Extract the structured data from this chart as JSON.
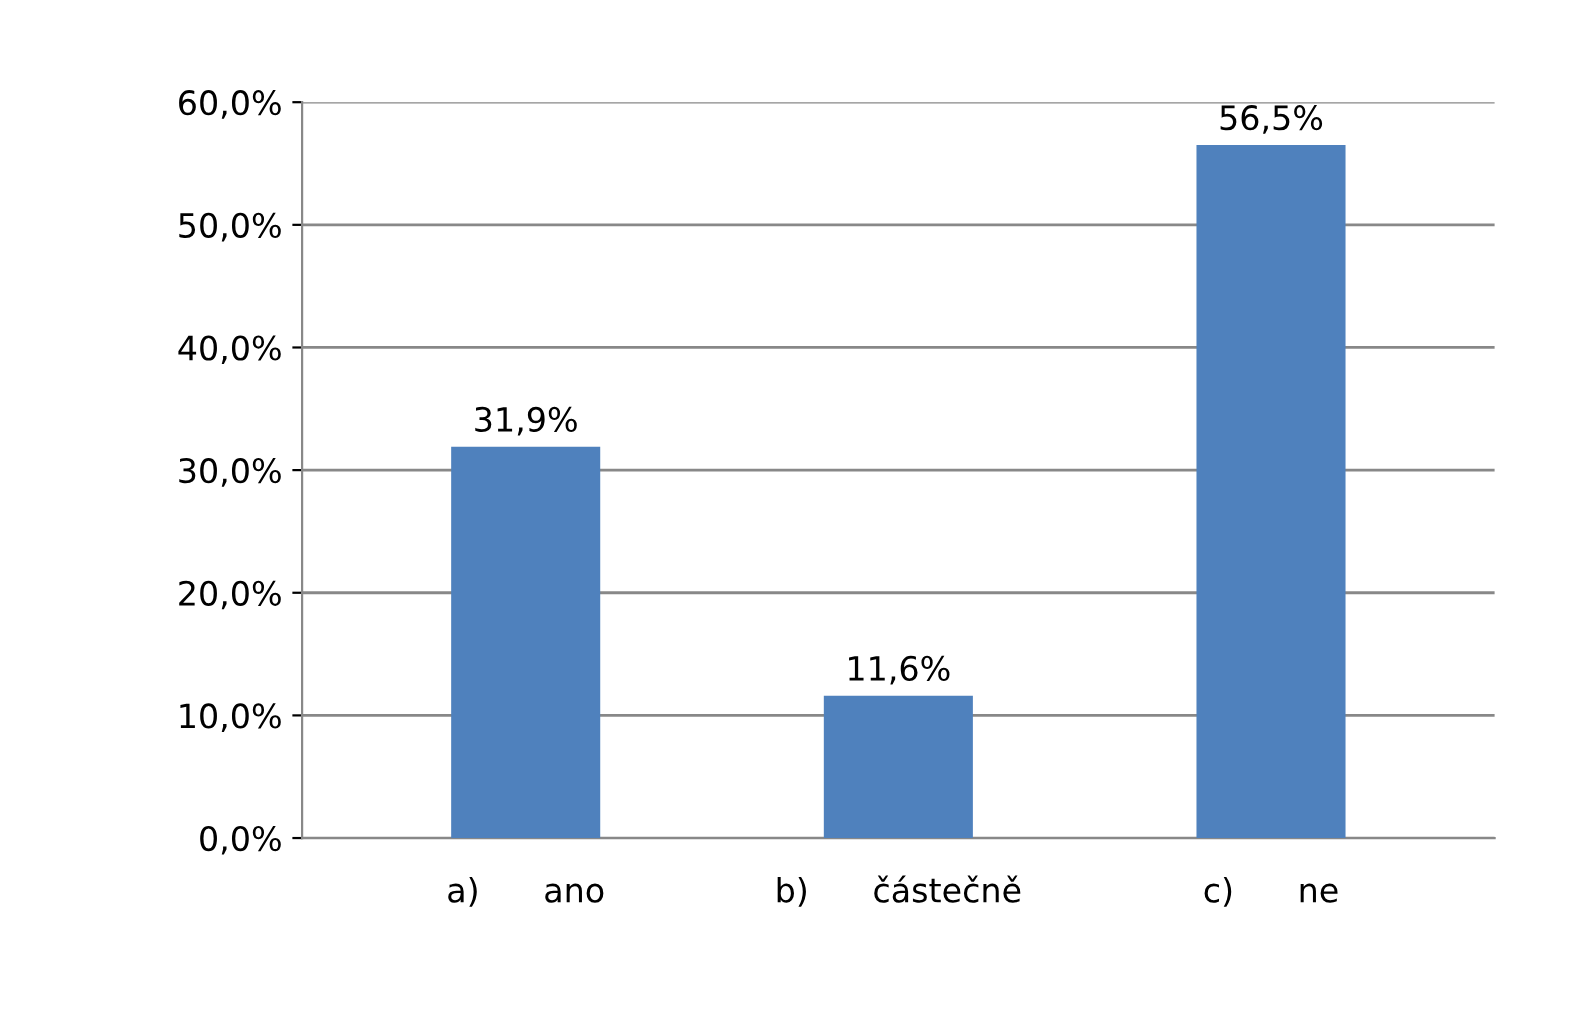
{
  "chart_data": {
    "type": "bar",
    "categories": [
      "a)      ano",
      "b)      částečně",
      "c)      ne"
    ],
    "values": [
      31.9,
      11.6,
      56.5
    ],
    "value_labels": [
      "31,9%",
      "11,6%",
      "56,5%"
    ],
    "color": "#4f81bd",
    "ylim": [
      0,
      60
    ],
    "yticks": [
      {
        "value": 0,
        "label": "0,0%"
      },
      {
        "value": 10,
        "label": "10,0%"
      },
      {
        "value": 20,
        "label": "20,0%"
      },
      {
        "value": 30,
        "label": "30,0%"
      },
      {
        "value": 40,
        "label": "40,0%"
      },
      {
        "value": 50,
        "label": "50,0%"
      },
      {
        "value": 60,
        "label": "60,0%"
      }
    ],
    "grid": "y"
  }
}
